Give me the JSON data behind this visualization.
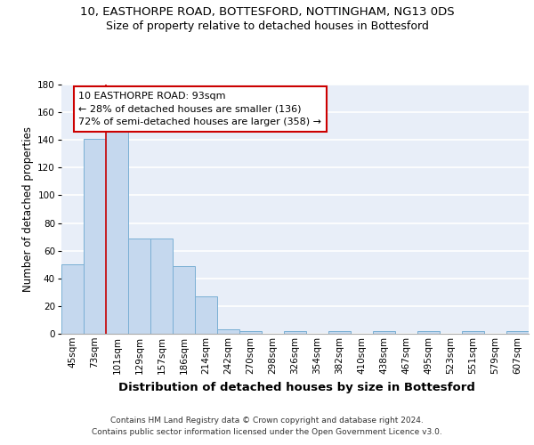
{
  "title1": "10, EASTHORPE ROAD, BOTTESFORD, NOTTINGHAM, NG13 0DS",
  "title2": "Size of property relative to detached houses in Bottesford",
  "xlabel": "Distribution of detached houses by size in Bottesford",
  "ylabel": "Number of detached properties",
  "categories": [
    "45sqm",
    "73sqm",
    "101sqm",
    "129sqm",
    "157sqm",
    "186sqm",
    "214sqm",
    "242sqm",
    "270sqm",
    "298sqm",
    "326sqm",
    "354sqm",
    "382sqm",
    "410sqm",
    "438sqm",
    "467sqm",
    "495sqm",
    "523sqm",
    "551sqm",
    "579sqm",
    "607sqm"
  ],
  "values": [
    50,
    141,
    146,
    69,
    69,
    49,
    27,
    3,
    2,
    0,
    2,
    0,
    2,
    0,
    2,
    0,
    2,
    0,
    2,
    0,
    2
  ],
  "bar_color": "#c5d8ee",
  "bar_edge_color": "#7aafd4",
  "vline_x": 1.5,
  "vline_color": "#cc0000",
  "annotation_lines": [
    "10 EASTHORPE ROAD: 93sqm",
    "← 28% of detached houses are smaller (136)",
    "72% of semi-detached houses are larger (358) →"
  ],
  "annotation_box_color": "#cc0000",
  "ylim": [
    0,
    180
  ],
  "yticks": [
    0,
    20,
    40,
    60,
    80,
    100,
    120,
    140,
    160,
    180
  ],
  "footer1": "Contains HM Land Registry data © Crown copyright and database right 2024.",
  "footer2": "Contains public sector information licensed under the Open Government Licence v3.0.",
  "background_color": "#e8eef8",
  "grid_color": "#ffffff",
  "title1_fontsize": 9.5,
  "title2_fontsize": 9,
  "xlabel_fontsize": 9.5,
  "ylabel_fontsize": 8.5,
  "tick_fontsize": 7.5,
  "annot_fontsize": 8,
  "footer_fontsize": 6.5
}
